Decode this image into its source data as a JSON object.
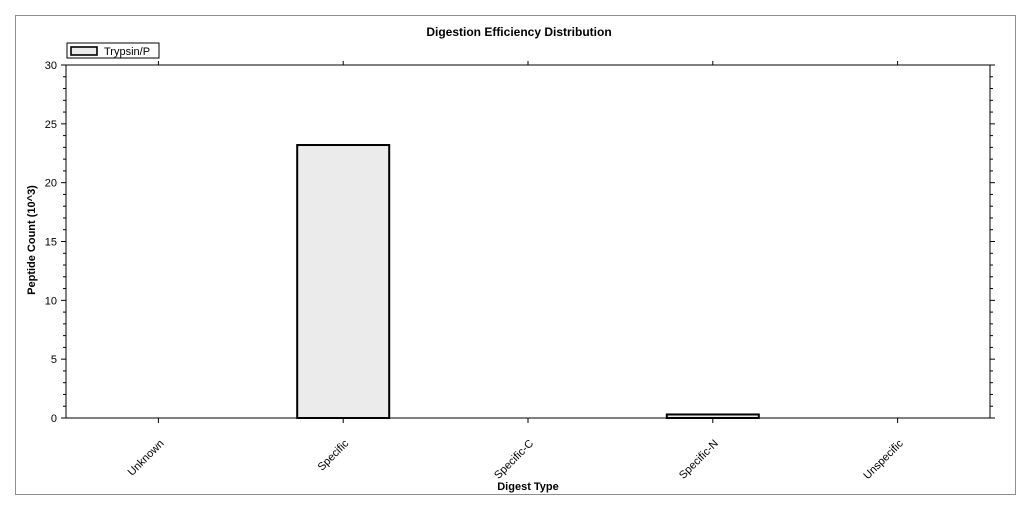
{
  "chart_data": {
    "type": "bar",
    "title": "Digestion Efficiency Distribution",
    "xlabel": "Digest Type",
    "ylabel": "Peptide Count (10^3)",
    "categories": [
      "Unknown",
      "Specific",
      "Specific-C",
      "Specific-N",
      "Unspecific"
    ],
    "series": [
      {
        "name": "Trypsin/P",
        "values": [
          0,
          23.2,
          0,
          0.3,
          0
        ]
      }
    ],
    "ylim": [
      0,
      30
    ],
    "yticks": [
      "0",
      "5",
      "10",
      "15",
      "20",
      "25",
      "30"
    ],
    "grid": false,
    "legend_position": "top-left",
    "colors": {
      "bar_fill": "#ebebeb",
      "bar_stroke": "#000000",
      "axis": "#000000"
    }
  }
}
